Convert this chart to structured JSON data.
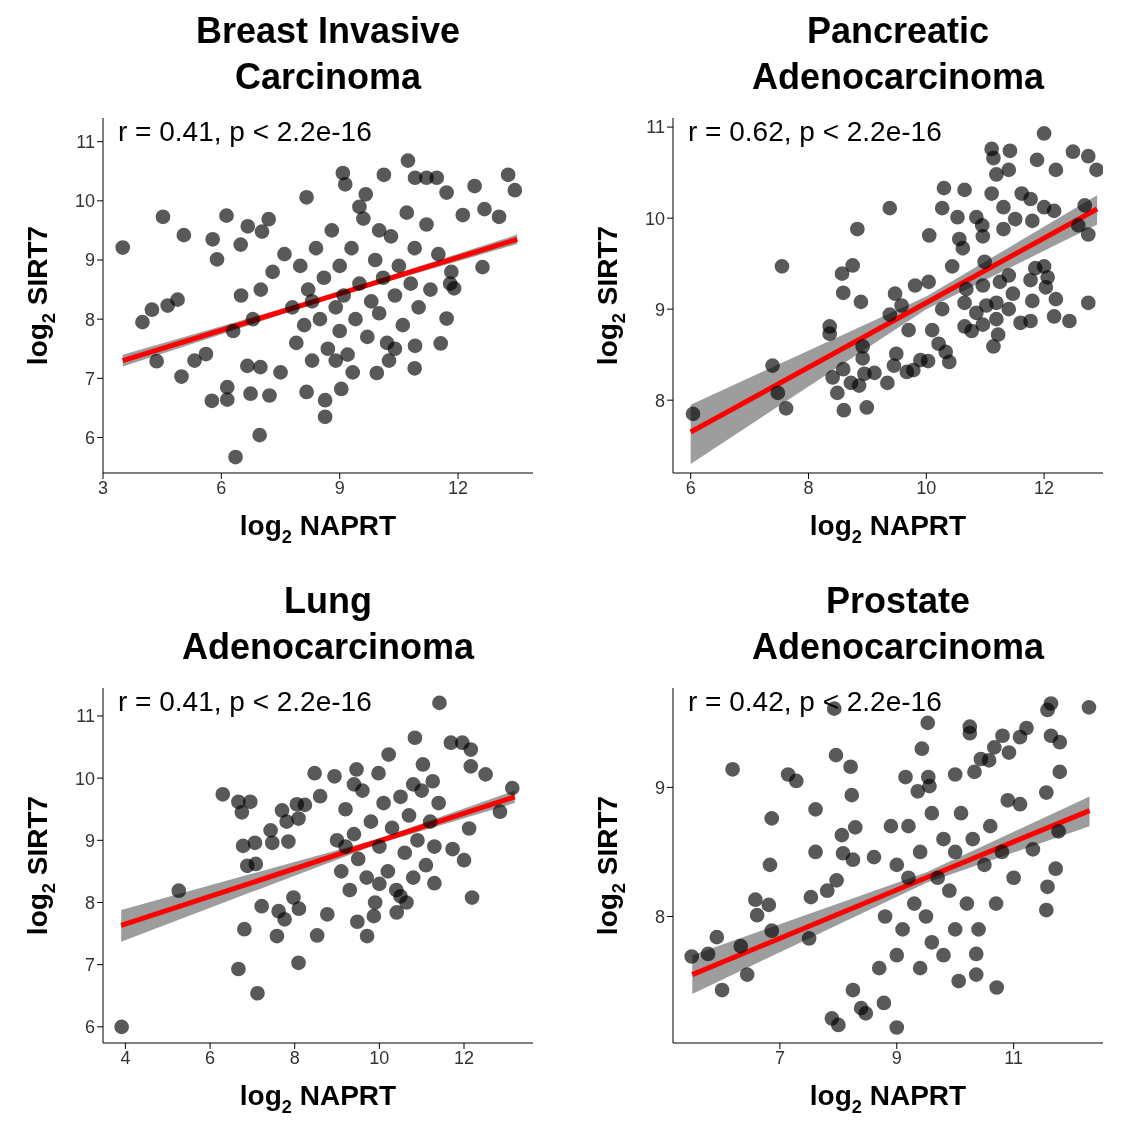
{
  "chart_data": [
    {
      "type": "scatter",
      "title": "Breast Invasive Carcinoma",
      "xlabel": "log$_{2}$ NAPRT",
      "ylabel": "log$_{2}$ SIRT7",
      "annotations": [
        "r = 0.41, p < 2.2e-16"
      ],
      "xlim": [
        3,
        13.9
      ],
      "ylim": [
        5.4,
        11.4
      ],
      "xticks": [
        3,
        6,
        9,
        12
      ],
      "yticks": [
        6,
        7,
        8,
        9,
        10,
        11
      ],
      "grid": false,
      "legend": false,
      "series": [
        {
          "type": "scatter",
          "marker": "circle",
          "color": "#000000",
          "x": [
            3.5,
            4.0,
            4.24,
            4.64,
            4.52,
            5.05,
            4.89,
            4.99,
            4.36,
            5.32,
            5.61,
            5.78,
            5.89,
            5.76,
            6.13,
            6.15,
            6.15,
            6.36,
            6.49,
            6.67,
            6.97,
            7.03,
            7.2,
            6.74,
            7.22,
            6.99,
            6.66,
            8.16,
            8.16,
            8.63,
            8.63,
            9.04,
            9.08,
            9.14,
            10.12,
            10.73,
            10.91,
            11.2,
            11.46,
            11.71,
            12.42,
            12.67,
            13.04,
            13.27,
            13.44,
            12.62,
            12.12,
            11.56,
            10.9,
            10.91,
            11.71,
            10.25,
            9.94,
            9.33,
            11.9,
            11.83,
            9.66,
            7.8,
            7.9,
            8.0,
            8.1,
            8.2,
            8.3,
            8.4,
            8.5,
            8.6,
            8.7,
            8.8,
            8.9,
            9.0,
            9.0,
            9.1,
            9.2,
            9.3,
            9.4,
            9.5,
            9.6,
            9.7,
            9.8,
            9.9,
            10.0,
            10.1,
            10.2,
            10.3,
            10.4,
            10.5,
            10.6,
            10.7,
            10.8,
            10.9,
            11.0,
            11.2,
            11.3,
            7.3,
            7.5,
            7.6,
            8.3,
            8.9,
            9.5,
            10.0,
            10.4,
            11.5,
            6.8,
            7.0,
            6.5,
            6.3,
            11.8
          ],
          "values": [
            9.21,
            7.95,
            8.16,
            8.23,
            9.73,
            9.42,
            8.33,
            7.03,
            7.29,
            7.3,
            7.41,
            9.35,
            9.01,
            6.62,
            9.75,
            6.64,
            6.85,
            5.67,
            9.26,
            9.57,
            6.04,
            9.48,
            9.69,
            6.74,
            6.71,
            7.19,
            7.21,
            10.06,
            6.77,
            6.35,
            6.63,
            6.82,
            10.47,
            10.28,
            10.44,
            10.68,
            10.39,
            10.39,
            10.39,
            10.14,
            10.25,
            9.86,
            9.73,
            10.44,
            10.18,
            8.88,
            9.76,
            7.59,
            7.17,
            7.55,
            8.01,
            7.3,
            7.09,
            7.1,
            8.52,
            8.8,
            10.11,
            8.2,
            7.6,
            8.9,
            7.9,
            8.5,
            7.3,
            9.2,
            8.0,
            8.7,
            7.5,
            9.5,
            8.2,
            7.8,
            8.9,
            8.4,
            7.4,
            9.2,
            8.0,
            8.6,
            9.7,
            7.7,
            8.3,
            9.0,
            8.1,
            8.7,
            7.6,
            9.4,
            8.4,
            8.9,
            7.9,
            9.8,
            8.6,
            9.2,
            8.2,
            9.6,
            8.5,
            8.8,
            7.1,
            9.1,
            8.3,
            7.3,
            9.9,
            9.5,
            7.5,
            9.1,
            8.0,
            8.5,
            8.4,
            7.8,
            8.6
          ]
        },
        {
          "type": "line",
          "color": "#ff0000",
          "x": [
            3.5,
            9,
            13.5
          ],
          "values": [
            7.3,
            8.43,
            9.35
          ],
          "lower": [
            7.2,
            8.4,
            9.27
          ],
          "upper": [
            7.4,
            8.46,
            9.43
          ]
        }
      ]
    },
    {
      "type": "scatter",
      "title": "Pancreatic Adenocarcinoma",
      "xlabel": "log$_{2}$ NAPRT",
      "ylabel": "log$_{2}$ SIRT7",
      "annotations": [
        "r = 0.62, p < 2.2e-16"
      ],
      "xlim": [
        5.7,
        13
      ],
      "ylim": [
        7.2,
        11.1
      ],
      "xticks": [
        6,
        8,
        10,
        12
      ],
      "yticks": [
        8,
        9,
        10,
        11
      ],
      "grid": false,
      "legend": false,
      "series": [
        {
          "type": "scatter",
          "marker": "circle",
          "color": "#000000",
          "x": [
            6.04,
            7.39,
            7.48,
            7.55,
            7.62,
            8.36,
            8.36,
            8.41,
            8.49,
            8.57,
            8.59,
            8.59,
            8.6,
            8.75,
            8.83,
            8.89,
            8.72,
            8.86,
            8.99,
            8.92,
            8.92,
            8.95,
            9.12,
            9.34,
            9.38,
            9.38,
            9.47,
            9.49,
            9.45,
            9.67,
            9.78,
            9.9,
            10.03,
            10.05,
            9.7,
            9.58,
            9.81,
            10.04,
            10.1,
            10.21,
            10.3,
            10.27,
            10.33,
            10.39,
            10.27,
            10.44,
            10.53,
            10.56,
            10.65,
            10.62,
            10.68,
            10.65,
            10.65,
            10.77,
            10.85,
            10.95,
            10.96,
            10.99,
            10.96,
            10.85,
            10.96,
            11.02,
            11.11,
            11.14,
            11.11,
            11.19,
            11.14,
            11.19,
            11.22,
            11.25,
            11.19,
            11.31,
            11.31,
            11.4,
            11.42,
            11.4,
            11.4,
            11.51,
            11.47,
            11.6,
            11.62,
            11.77,
            11.77,
            11.77,
            11.8,
            11.8,
            11.88,
            11.85,
            12.0,
            12.0,
            12.0,
            12.03,
            12.06,
            12.17,
            12.2,
            12.17,
            12.2,
            12.43,
            12.49,
            12.58,
            12.75,
            12.75,
            12.75,
            12.89,
            12.69
          ],
          "values": [
            7.85,
            8.38,
            8.08,
            9.47,
            7.91,
            8.81,
            8.73,
            8.25,
            8.08,
            9.39,
            9.18,
            8.34,
            7.89,
            9.48,
            9.88,
            9.08,
            8.19,
            8.16,
            7.92,
            8.59,
            8.46,
            8.29,
            8.3,
            8.19,
            10.11,
            8.94,
            9.17,
            8.51,
            8.38,
            8.31,
            8.33,
            8.44,
            8.43,
            9.81,
            8.77,
            9.04,
            9.26,
            9.3,
            8.77,
            8.62,
            10.33,
            10.11,
            8.53,
            8.42,
            9.0,
            9.47,
            10.01,
            9.77,
            10.31,
            9.67,
            9.22,
            9.07,
            8.81,
            8.76,
            10.01,
            9.92,
            9.8,
            9.52,
            9.26,
            8.96,
            8.83,
            9.04,
            10.76,
            10.66,
            10.27,
            10.48,
            8.59,
            8.89,
            8.72,
            9.3,
            9.07,
            10.12,
            9.88,
            10.53,
            10.74,
            9.0,
            9.37,
            9.99,
            9.17,
            8.85,
            10.27,
            10.21,
            8.87,
            9.32,
            9.09,
            9.97,
            10.64,
            9.45,
            10.12,
            10.93,
            9.47,
            9.24,
            9.35,
            10.08,
            10.53,
            8.92,
            9.11,
            8.87,
            10.73,
            9.92,
            10.68,
            9.82,
            9.07,
            10.53,
            10.14
          ]
        },
        {
          "type": "line",
          "color": "#ff0000",
          "x": [
            6,
            10,
            12.9
          ],
          "values": [
            7.65,
            9.07,
            10.1
          ],
          "lower": [
            7.3,
            9.0,
            9.93
          ],
          "upper": [
            7.95,
            9.14,
            10.25
          ]
        }
      ]
    },
    {
      "type": "scatter",
      "title": "Lung Adenocarcinoma",
      "xlabel": "log$_{2}$ NAPRT",
      "ylabel": "log$_{2}$ SIRT7",
      "annotations": [
        "r = 0.41, p < 2.2e-16"
      ],
      "xlim": [
        3.47,
        13.63
      ],
      "ylim": [
        5.74,
        11.45
      ],
      "xticks": [
        4,
        6,
        8,
        10,
        12
      ],
      "yticks": [
        6,
        7,
        8,
        9,
        10,
        11
      ],
      "grid": false,
      "legend": false,
      "series": [
        {
          "type": "scatter",
          "marker": "circle",
          "color": "#000000",
          "x": [
            3.91,
            5.26,
            6.3,
            6.67,
            6.95,
            6.75,
            6.67,
            7.12,
            6.81,
            6.78,
            7.06,
            6.88,
            7.08,
            7.22,
            7.43,
            7.47,
            7.58,
            7.62,
            7.76,
            7.7,
            7.81,
            7.85,
            7.97,
            8.09,
            8.1,
            8.05,
            8.09,
            8.24,
            8.47,
            8.53,
            8.6,
            8.77,
            8.94,
            9.46,
            9.48,
            9.71,
            9.87,
            10.41,
            10.64,
            10.84,
            11.42,
            11.69,
            11.96,
            12.16,
            12.16,
            12.51,
            12.19,
            12.0,
            12.85,
            13.14,
            12.12,
            11.3,
            11.73,
            10.22,
            9.98,
            11.26,
            11.03,
            9.0,
            9.1,
            9.2,
            9.3,
            9.4,
            9.5,
            9.6,
            9.7,
            9.8,
            9.9,
            10.0,
            10.1,
            10.2,
            10.3,
            10.4,
            10.5,
            10.6,
            10.7,
            10.8,
            10.9,
            11.0,
            11.1,
            11.2,
            11.3,
            11.4,
            9.4,
            10.0,
            10.5,
            9.2,
            10.8
          ],
          "values": [
            6.0,
            8.19,
            9.74,
            9.62,
            9.62,
            9.45,
            6.93,
            6.54,
            7.57,
            8.91,
            8.96,
            8.59,
            8.62,
            7.94,
            9.16,
            8.96,
            7.46,
            7.86,
            7.73,
            9.48,
            9.3,
            8.98,
            8.08,
            7.03,
            7.9,
            9.58,
            9.35,
            9.57,
            10.08,
            7.47,
            9.71,
            7.81,
            10.03,
            10.14,
            7.69,
            7.46,
            7.78,
            7.84,
            8.0,
            10.65,
            11.21,
            10.57,
            10.57,
            10.46,
            10.19,
            10.06,
            8.08,
            8.68,
            9.46,
            9.84,
            9.19,
            8.31,
            8.86,
            10.38,
            10.08,
            9.95,
            10.22,
            9.0,
            8.5,
            9.5,
            8.2,
            9.1,
            8.7,
            9.8,
            8.4,
            9.3,
            8.0,
            8.9,
            9.6,
            8.5,
            9.2,
            8.2,
            9.7,
            8.8,
            9.4,
            8.4,
            9.0,
            9.8,
            8.6,
            9.3,
            8.9,
            9.6,
            9.9,
            8.3,
            8.1,
            8.9,
            9.9
          ]
        },
        {
          "type": "line",
          "color": "#ff0000",
          "x": [
            3.9,
            10,
            13.2
          ],
          "values": [
            7.63,
            8.99,
            9.7
          ],
          "lower": [
            7.37,
            8.95,
            9.6
          ],
          "upper": [
            7.88,
            9.03,
            9.8
          ]
        }
      ]
    },
    {
      "type": "scatter",
      "title": "Prostate Adenocarcinoma",
      "xlabel": "log$_{2}$ NAPRT",
      "ylabel": "log$_{2}$ SIRT7",
      "annotations": [
        "r = 0.42, p < 2.2e-16"
      ],
      "xlim": [
        5.17,
        12.53
      ],
      "ylim": [
        7.02,
        9.77
      ],
      "xticks": [
        7,
        9,
        11
      ],
      "yticks": [
        8,
        9
      ],
      "grid": false,
      "legend": false,
      "series": [
        {
          "type": "scatter",
          "marker": "circle",
          "color": "#000000",
          "x": [
            5.49,
            5.77,
            5.92,
            6.01,
            6.19,
            6.33,
            6.44,
            6.58,
            6.61,
            6.81,
            6.83,
            6.86,
            6.86,
            7.14,
            7.28,
            7.5,
            7.53,
            7.61,
            7.61,
            7.81,
            7.89,
            8.0,
            7.93,
            7.96,
            7.97,
            8.06,
            8.08,
            8.21,
            8.23,
            8.25,
            8.29,
            8.25,
            8.39,
            8.47,
            8.61,
            8.78,
            9.0,
            9.15,
            9.36,
            9.43,
            9.53,
            9.54,
            9.56,
            10.06,
            10.36,
            10.36,
            10.71,
            10.0,
            10.25,
            10.25,
            10.67,
            10.81,
            10.92,
            11.11,
            11.22,
            11.58,
            11.64,
            11.64,
            11.79,
            11.79,
            12.29,
            11.56,
            11.58,
            11.72,
            11.77,
            11.33,
            11.56,
            11.11,
            10.33,
            10.44,
            10.58,
            9.0,
            9.1,
            9.2,
            9.3,
            9.4,
            9.4,
            9.5,
            9.6,
            9.6,
            9.7,
            9.8,
            9.8,
            9.9,
            10.0,
            10.0,
            10.1,
            10.2,
            10.3,
            10.4,
            10.5,
            10.6,
            10.7,
            10.8,
            9.2,
            9.0,
            8.9,
            8.8,
            8.7,
            10.9,
            11.0
          ],
          "values": [
            7.69,
            7.71,
            7.84,
            7.43,
            9.14,
            7.77,
            7.55,
            8.13,
            8.01,
            8.09,
            8.4,
            8.76,
            7.89,
            9.1,
            9.05,
            7.83,
            8.15,
            8.83,
            8.5,
            8.2,
            7.21,
            7.16,
            9.61,
            9.25,
            8.28,
            8.63,
            8.49,
            9.16,
            8.94,
            8.44,
            8.69,
            7.43,
            7.29,
            7.25,
            8.46,
            7.33,
            7.14,
            9.08,
            8.97,
            9.3,
            9.5,
            9.08,
            9.01,
            7.5,
            7.55,
            7.71,
            7.45,
            9.1,
            9.47,
            9.42,
            9.31,
            9.4,
            9.27,
            9.39,
            9.46,
            9.6,
            9.65,
            9.4,
            9.35,
            9.12,
            9.62,
            8.05,
            8.23,
            8.37,
            8.66,
            8.52,
            8.96,
            8.87,
            9.12,
            9.22,
            9.21,
            8.4,
            7.9,
            8.7,
            8.1,
            7.6,
            8.5,
            8.0,
            8.8,
            7.8,
            8.3,
            8.6,
            7.7,
            8.2,
            8.5,
            7.9,
            8.8,
            8.1,
            8.6,
            7.9,
            8.4,
            8.7,
            8.1,
            8.5,
            8.3,
            7.7,
            8.7,
            8.0,
            7.6,
            8.9,
            8.3
          ]
        },
        {
          "type": "line",
          "color": "#ff0000",
          "x": [
            5.5,
            9.5,
            12.3
          ],
          "values": [
            7.55,
            8.3,
            8.82
          ],
          "lower": [
            7.4,
            8.26,
            8.7
          ],
          "upper": [
            7.7,
            8.34,
            8.93
          ]
        }
      ]
    }
  ]
}
